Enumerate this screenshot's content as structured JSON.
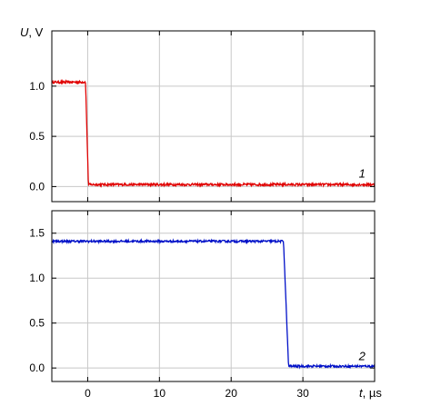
{
  "chart_data": [
    {
      "type": "line",
      "id": "top",
      "ylabel_symbol": "U",
      "ylabel_unit": ", V",
      "xlim": [
        -5,
        40
      ],
      "ylim": [
        -0.15,
        1.55
      ],
      "xticks": [
        0,
        10,
        20,
        30
      ],
      "yticks": [
        0.0,
        0.5,
        1.0
      ],
      "ytick_labels": [
        "0.0",
        "0.5",
        "1.0"
      ],
      "grid": true,
      "series": [
        {
          "label": "1",
          "color": "#e00000",
          "points": [
            [
              -5,
              1.04
            ],
            [
              -0.3,
              1.04
            ],
            [
              0.1,
              0.02
            ],
            [
              40,
              0.02
            ]
          ],
          "noise": 0.012
        }
      ],
      "annotation": {
        "text": "1",
        "x": 37.8,
        "y": 0.09
      }
    },
    {
      "type": "line",
      "id": "bottom",
      "xlabel_symbol": "t",
      "xlabel_unit": ", µs",
      "xlim": [
        -5,
        40
      ],
      "ylim": [
        -0.15,
        1.75
      ],
      "xticks": [
        0,
        10,
        20,
        30
      ],
      "xtick_labels": [
        "0",
        "10",
        "20",
        "30"
      ],
      "yticks": [
        0.0,
        0.5,
        1.0,
        1.5
      ],
      "ytick_labels": [
        "0.0",
        "0.5",
        "1.0",
        "1.5"
      ],
      "grid": true,
      "series": [
        {
          "label": "2",
          "color": "#0010c8",
          "points": [
            [
              -5,
              1.41
            ],
            [
              27.3,
              1.41
            ],
            [
              28.0,
              0.02
            ],
            [
              40,
              0.02
            ]
          ],
          "noise": 0.012
        }
      ],
      "annotation": {
        "text": "2",
        "x": 37.8,
        "y": 0.09
      }
    }
  ]
}
